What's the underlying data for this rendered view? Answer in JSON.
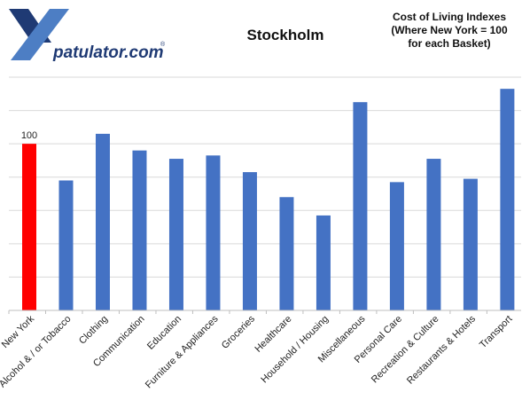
{
  "brand": {
    "logo_letter": "X",
    "logo_text": "patulator.com",
    "logo_mark": "®",
    "colors": {
      "navy": "#1f3a74",
      "blue_light": "#4d7ec4"
    }
  },
  "header": {
    "title": "Stockholm",
    "note_lines": [
      "Cost of Living Indexes",
      "(Where New York = 100",
      "for each Basket)"
    ]
  },
  "chart_data": {
    "type": "bar",
    "title": "Stockholm",
    "categories": [
      "New York",
      "Alcohol & / or Tobacco",
      "Clothing",
      "Communication",
      "Education",
      "Furniture & Appliances",
      "Groceries",
      "Healthcare",
      "Household / Housing",
      "Miscellaneous",
      "Personal Care",
      "Recreation & Culture",
      "Restaurants & Hotels",
      "Transport"
    ],
    "values": [
      100,
      78,
      106,
      96,
      91,
      93,
      83,
      68,
      57,
      125,
      77,
      91,
      79,
      133
    ],
    "data_labels": [
      {
        "category": "New York",
        "text": "100"
      }
    ],
    "ylim": [
      0,
      140
    ],
    "grid": true,
    "xlabel": "",
    "ylabel": "",
    "colors": {
      "highlight": "#ff0000",
      "bar": "#4472c4",
      "grid": "#d9d9d9",
      "axis": "#bfbfbf"
    }
  }
}
